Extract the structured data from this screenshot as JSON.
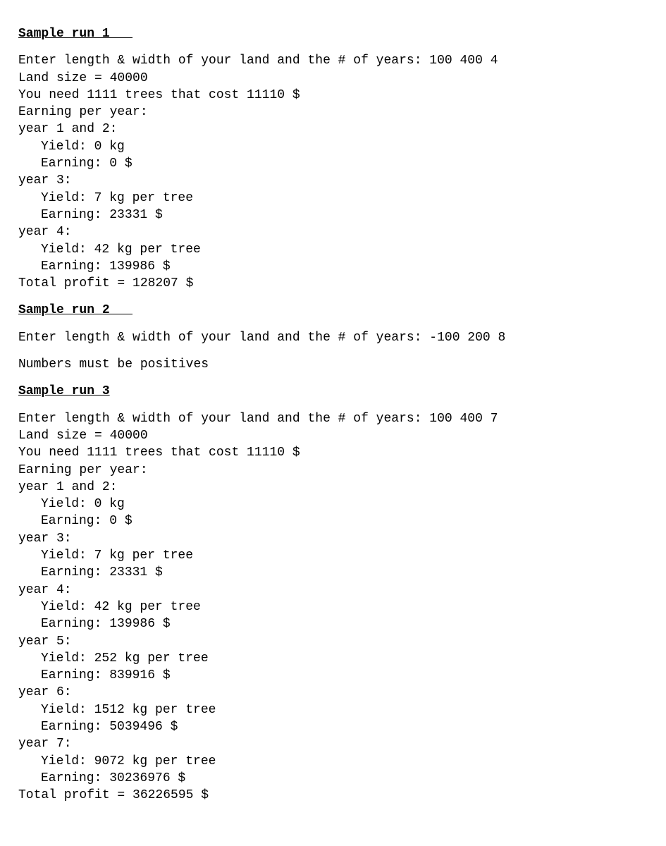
{
  "run1": {
    "heading": "Sample run 1   ",
    "lines": [
      "Enter length & width of your land and the # of years: 100 400 4",
      "Land size = 40000",
      "You need 1111 trees that cost 11110 $",
      "Earning per year:",
      "year 1 and 2:"
    ],
    "indented1": [
      "Yield: 0 kg",
      "Earning: 0 $"
    ],
    "line_year3": "year 3:",
    "indented2": [
      "Yield: 7 kg per tree",
      "Earning: 23331 $"
    ],
    "line_year4": "year 4:",
    "indented3": [
      "Yield: 42 kg per tree",
      "Earning: 139986 $"
    ],
    "total": "Total profit = 128207 $"
  },
  "run2": {
    "heading": "Sample run 2   ",
    "line1": "Enter length & width of your land and the # of years: -100 200 8",
    "line2": "Numbers must be positives"
  },
  "run3": {
    "heading": "Sample run 3",
    "lines": [
      "Enter length & width of your land and the # of years: 100 400 7",
      "Land size = 40000",
      "You need 1111 trees that cost 11110 $",
      "Earning per year:",
      "year 1 and 2:"
    ],
    "indented1": [
      "Yield: 0 kg",
      "Earning: 0 $"
    ],
    "line_year3": "year 3:",
    "indented2": [
      "Yield: 7 kg per tree",
      "Earning: 23331 $"
    ],
    "line_year4": "year 4:",
    "indented3": [
      "Yield: 42 kg per tree",
      "Earning: 139986 $"
    ],
    "line_year5": "year 5:",
    "indented4": [
      "Yield: 252 kg per tree",
      "Earning: 839916 $"
    ],
    "line_year6": "year 6:",
    "indented5": [
      "Yield: 1512 kg per tree",
      "Earning: 5039496 $"
    ],
    "line_year7": "year 7:",
    "indented6": [
      "Yield: 9072 kg per tree",
      "Earning: 30236976 $"
    ],
    "total": "Total profit = 36226595 $"
  }
}
